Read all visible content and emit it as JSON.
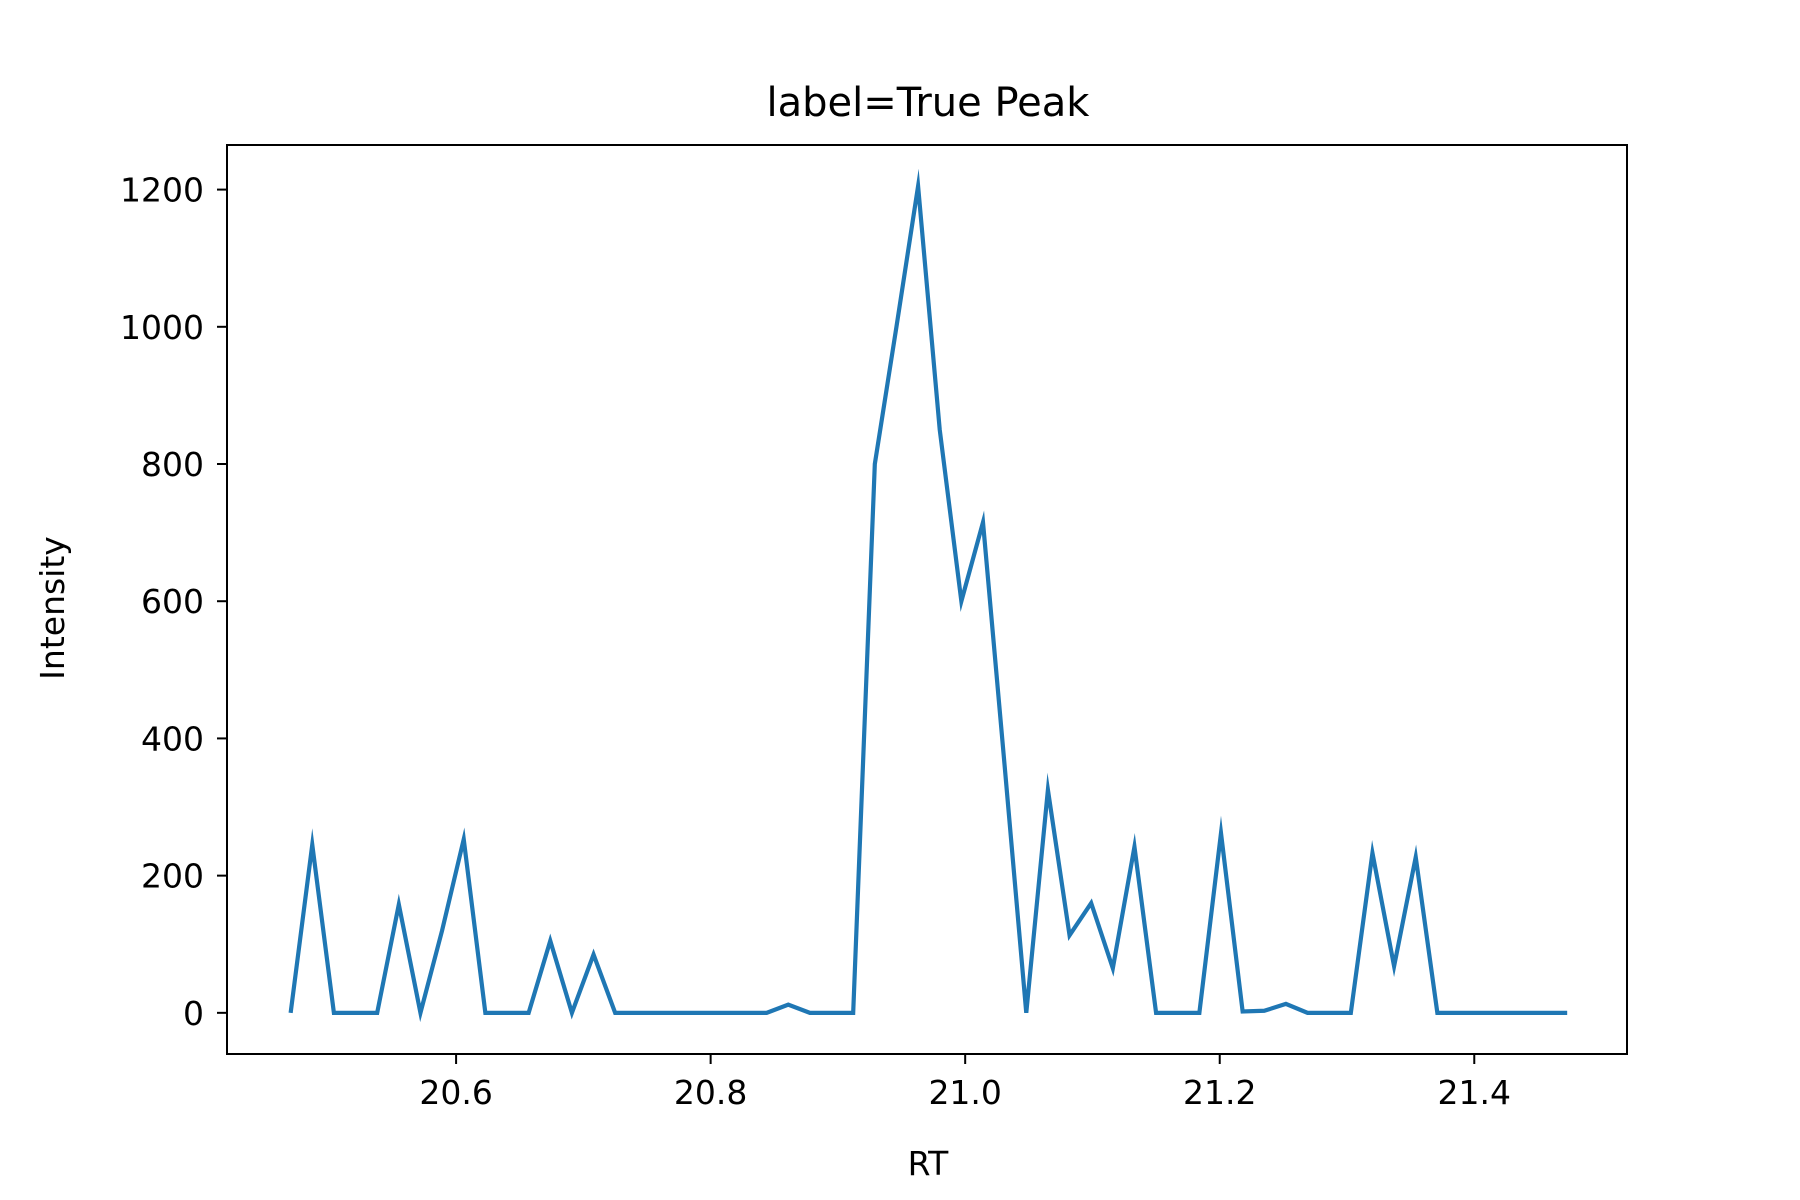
{
  "chart_data": {
    "type": "line",
    "title": "label=True Peak",
    "xlabel": "RT",
    "ylabel": "Intensity",
    "xlim": [
      20.42,
      21.52
    ],
    "ylim": [
      -60,
      1265
    ],
    "x_ticks": [
      20.6,
      20.8,
      21.0,
      21.2,
      21.4
    ],
    "x_tick_labels": [
      "20.6",
      "20.8",
      "21.0",
      "21.2",
      "21.4"
    ],
    "y_ticks": [
      0,
      200,
      400,
      600,
      800,
      1000,
      1200
    ],
    "y_tick_labels": [
      "0",
      "200",
      "400",
      "600",
      "800",
      "1000",
      "1200"
    ],
    "grid": false,
    "series": [
      {
        "color": "#1f77b4",
        "x": [
          20.47,
          20.487,
          20.504,
          20.521,
          20.538,
          20.555,
          20.572,
          20.589,
          20.606,
          20.623,
          20.64,
          20.657,
          20.674,
          20.691,
          20.708,
          20.725,
          20.742,
          20.759,
          20.776,
          20.793,
          20.81,
          20.827,
          20.844,
          20.861,
          20.878,
          20.895,
          20.912,
          20.929,
          20.946,
          20.963,
          20.98,
          20.997,
          21.014,
          21.031,
          21.048,
          21.065,
          21.082,
          21.099,
          21.116,
          21.133,
          21.15,
          21.167,
          21.184,
          21.201,
          21.218,
          21.235,
          21.252,
          21.269,
          21.286,
          21.303,
          21.32,
          21.337,
          21.354,
          21.371,
          21.388,
          21.405,
          21.422,
          21.439,
          21.456,
          21.473
        ],
        "y": [
          0,
          245,
          0,
          0,
          0,
          158,
          0,
          120,
          253,
          0,
          0,
          0,
          105,
          0,
          85,
          0,
          0,
          0,
          0,
          0,
          0,
          0,
          0,
          12,
          0,
          0,
          0,
          800,
          1000,
          1205,
          850,
          600,
          715,
          360,
          0,
          325,
          113,
          160,
          65,
          242,
          0,
          0,
          0,
          262,
          2,
          3,
          13,
          0,
          0,
          0,
          233,
          68,
          227,
          0,
          0,
          0,
          0,
          0,
          0,
          0
        ]
      }
    ]
  }
}
